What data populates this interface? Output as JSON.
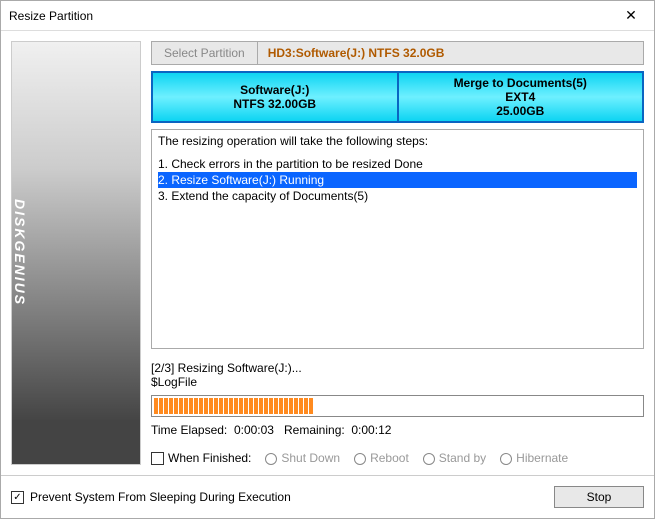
{
  "window": {
    "title": "Resize Partition"
  },
  "side": {
    "brand": "DISKGENIUS"
  },
  "tab": {
    "select_label": "Select Partition",
    "info": "HD3:Software(J:) NTFS 32.0GB"
  },
  "partitions": [
    {
      "name": "Software(J:)",
      "detail": "NTFS 32.00GB",
      "bg_start": "#0dd4f2",
      "bg_mid": "#6ef0ff"
    },
    {
      "name": "Merge to Documents(5)",
      "detail": "EXT4",
      "detail2": "25.00GB",
      "bg_start": "#0dd4f2",
      "bg_mid": "#6ef0ff"
    }
  ],
  "steps": {
    "intro": "The resizing operation will take the following steps:",
    "items": [
      {
        "text": "1. Check errors in the partition to be resized    Done",
        "selected": false
      },
      {
        "text": "2. Resize Software(J:)    Running",
        "selected": true
      },
      {
        "text": "3. Extend the capacity of Documents(5)",
        "selected": false
      }
    ]
  },
  "status": {
    "line1": "[2/3] Resizing Software(J:)...",
    "line2": "$LogFile",
    "progress_percent": 36,
    "bar_color": "#ff8a1f",
    "time_elapsed_label": "Time Elapsed:",
    "time_elapsed": "0:00:03",
    "remaining_label": "Remaining:",
    "remaining": "0:00:12"
  },
  "finish": {
    "label": "When Finished:",
    "checked": false,
    "options": [
      "Shut Down",
      "Reboot",
      "Stand by",
      "Hibernate"
    ]
  },
  "footer": {
    "prevent_sleep_label": "Prevent System From Sleeping During Execution",
    "prevent_sleep_checked": true,
    "stop_label": "Stop"
  },
  "colors": {
    "accent_border": "#0a65c2",
    "selection": "#0a65ff",
    "tab_info_text": "#b05a00"
  }
}
